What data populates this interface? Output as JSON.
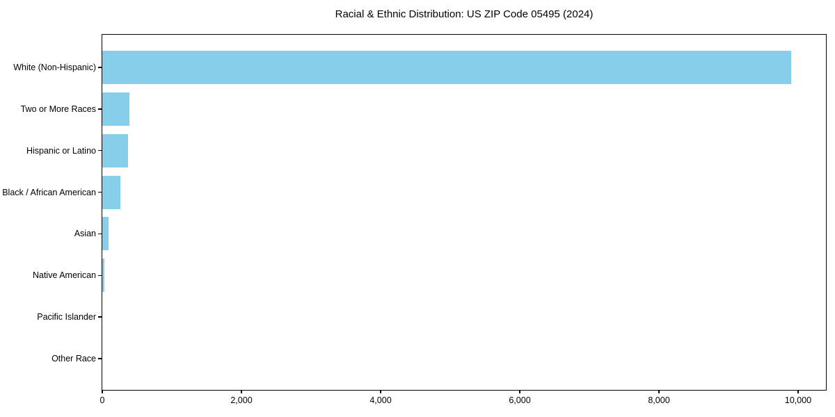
{
  "chart_data": {
    "type": "bar",
    "orientation": "horizontal",
    "title": "Racial & Ethnic Distribution: US ZIP Code 05495 (2024)",
    "categories": [
      "White (Non-Hispanic)",
      "Two or More Races",
      "Hispanic or Latino",
      "Black / African American",
      "Asian",
      "Native American",
      "Pacific Islander",
      "Other Race"
    ],
    "values": [
      9900,
      390,
      370,
      260,
      90,
      30,
      0,
      0
    ],
    "x_ticks": [
      0,
      2000,
      4000,
      6000,
      8000,
      10000
    ],
    "x_tick_labels": [
      "0",
      "2,000",
      "4,000",
      "6,000",
      "8,000",
      "10,000"
    ],
    "xlim": [
      0,
      10400
    ],
    "xlabel": "",
    "ylabel": "",
    "bar_color": "#87CEEB",
    "axis_color": "#000000",
    "background_color": "#ffffff",
    "grid": false,
    "legend": false
  }
}
